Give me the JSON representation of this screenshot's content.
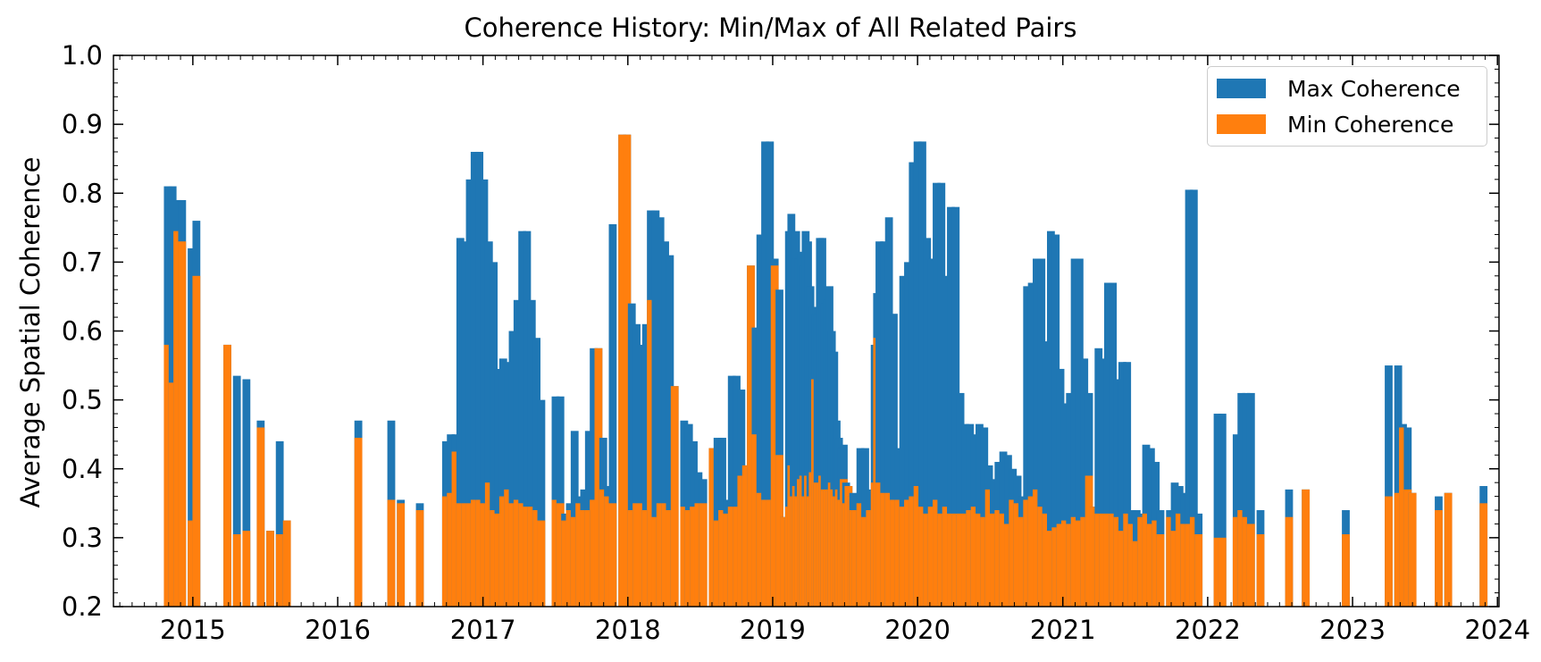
{
  "colors": {
    "max": "#1f77b4",
    "min": "#ff7f0e"
  },
  "chart_data": {
    "type": "bar",
    "title": "Coherence History: Min/Max of All Related Pairs",
    "xlabel": "",
    "ylabel": "Average Spatial Coherence",
    "xlim": [
      "2014-06-15",
      "2024-01-05"
    ],
    "ylim": [
      0.2,
      1.0
    ],
    "yticks": [
      "0.2",
      "0.3",
      "0.4",
      "0.5",
      "0.6",
      "0.7",
      "0.8",
      "0.9",
      "1.0"
    ],
    "xticks": [
      "2015",
      "2016",
      "2017",
      "2018",
      "2019",
      "2020",
      "2021",
      "2022",
      "2023",
      "2024"
    ],
    "grid": false,
    "legend_position": "top-right",
    "bar_layout": "overlaid",
    "series": [
      {
        "name": "Max Coherence",
        "color": "#1f77b4"
      },
      {
        "name": "Min Coherence",
        "color": "#ff7f0e"
      }
    ],
    "bars": [
      [
        "2014-10-30",
        0.81,
        0.58
      ],
      [
        "2014-11-11",
        0.81,
        0.525
      ],
      [
        "2014-11-23",
        0.79,
        0.745
      ],
      [
        "2014-12-05",
        0.79,
        0.73
      ],
      [
        "2014-12-29",
        0.72,
        0.325
      ],
      [
        "2015-01-10",
        0.76,
        0.68
      ],
      [
        "2015-03-29",
        0.58,
        0.58
      ],
      [
        "2015-04-22",
        0.535,
        0.305
      ],
      [
        "2015-05-16",
        0.53,
        0.31
      ],
      [
        "2015-06-21",
        0.47,
        0.46
      ],
      [
        "2015-07-15",
        0.31,
        0.31
      ],
      [
        "2015-08-08",
        0.44,
        0.305
      ],
      [
        "2015-08-26",
        0.325,
        0.325
      ],
      [
        "2016-02-22",
        0.47,
        0.445
      ],
      [
        "2016-05-15",
        0.47,
        0.355
      ],
      [
        "2016-06-08",
        0.355,
        0.35
      ],
      [
        "2016-07-26",
        0.35,
        0.34
      ],
      [
        "2016-09-30",
        0.44,
        0.36
      ],
      [
        "2016-10-12",
        0.45,
        0.365
      ],
      [
        "2016-10-24",
        0.45,
        0.425
      ],
      [
        "2016-11-05",
        0.735,
        0.35
      ],
      [
        "2016-11-17",
        0.73,
        0.35
      ],
      [
        "2016-11-29",
        0.82,
        0.35
      ],
      [
        "2016-12-11",
        0.86,
        0.355
      ],
      [
        "2016-12-23",
        0.86,
        0.355
      ],
      [
        "2017-01-04",
        0.82,
        0.35
      ],
      [
        "2017-01-16",
        0.73,
        0.38
      ],
      [
        "2017-01-28",
        0.7,
        0.34
      ],
      [
        "2017-02-09",
        0.545,
        0.335
      ],
      [
        "2017-02-21",
        0.56,
        0.36
      ],
      [
        "2017-03-05",
        0.555,
        0.37
      ],
      [
        "2017-03-17",
        0.6,
        0.35
      ],
      [
        "2017-03-29",
        0.645,
        0.355
      ],
      [
        "2017-04-10",
        0.745,
        0.35
      ],
      [
        "2017-04-22",
        0.745,
        0.345
      ],
      [
        "2017-05-04",
        0.645,
        0.345
      ],
      [
        "2017-05-16",
        0.59,
        0.34
      ],
      [
        "2017-05-28",
        0.5,
        0.325
      ],
      [
        "2017-07-03",
        0.505,
        0.355
      ],
      [
        "2017-07-15",
        0.505,
        0.35
      ],
      [
        "2017-07-27",
        0.335,
        0.325
      ],
      [
        "2017-08-08",
        0.35,
        0.34
      ],
      [
        "2017-08-20",
        0.455,
        0.33
      ],
      [
        "2017-09-01",
        0.36,
        0.35
      ],
      [
        "2017-09-13",
        0.37,
        0.34
      ],
      [
        "2017-09-25",
        0.455,
        0.34
      ],
      [
        "2017-10-07",
        0.575,
        0.355
      ],
      [
        "2017-10-19",
        0.575,
        0.575
      ],
      [
        "2017-10-31",
        0.445,
        0.37
      ],
      [
        "2017-11-12",
        0.375,
        0.36
      ],
      [
        "2017-11-24",
        0.755,
        0.35
      ],
      [
        "2017-12-18",
        0.885,
        0.885
      ],
      [
        "2017-12-30",
        0.885,
        0.885
      ],
      [
        "2018-01-11",
        0.64,
        0.34
      ],
      [
        "2018-01-23",
        0.61,
        0.35
      ],
      [
        "2018-02-04",
        0.58,
        0.35
      ],
      [
        "2018-02-16",
        0.61,
        0.34
      ],
      [
        "2018-02-28",
        0.775,
        0.645
      ],
      [
        "2018-03-12",
        0.775,
        0.33
      ],
      [
        "2018-03-24",
        0.765,
        0.35
      ],
      [
        "2018-04-05",
        0.73,
        0.35
      ],
      [
        "2018-04-17",
        0.71,
        0.34
      ],
      [
        "2018-04-29",
        0.52,
        0.52
      ],
      [
        "2018-05-23",
        0.47,
        0.345
      ],
      [
        "2018-06-04",
        0.465,
        0.34
      ],
      [
        "2018-06-16",
        0.44,
        0.345
      ],
      [
        "2018-06-28",
        0.395,
        0.35
      ],
      [
        "2018-07-10",
        0.385,
        0.35
      ],
      [
        "2018-08-03",
        0.43,
        0.43
      ],
      [
        "2018-08-15",
        0.445,
        0.325
      ],
      [
        "2018-08-27",
        0.445,
        0.34
      ],
      [
        "2018-09-08",
        0.355,
        0.335
      ],
      [
        "2018-09-20",
        0.535,
        0.345
      ],
      [
        "2018-10-02",
        0.535,
        0.345
      ],
      [
        "2018-10-14",
        0.515,
        0.39
      ],
      [
        "2018-10-26",
        0.405,
        0.405
      ],
      [
        "2018-11-07",
        0.695,
        0.695
      ],
      [
        "2018-11-19",
        0.605,
        0.45
      ],
      [
        "2018-12-01",
        0.74,
        0.365
      ],
      [
        "2018-12-13",
        0.875,
        0.355
      ],
      [
        "2018-12-25",
        0.875,
        0.355
      ],
      [
        "2019-01-06",
        0.705,
        0.695
      ],
      [
        "2019-01-18",
        0.66,
        0.42
      ],
      [
        "2019-01-30",
        0.33,
        0.33
      ],
      [
        "2019-02-11",
        0.745,
        0.345
      ],
      [
        "2019-02-17",
        0.77,
        0.405
      ],
      [
        "2019-02-23",
        0.735,
        0.36
      ],
      [
        "2019-03-01",
        0.745,
        0.375
      ],
      [
        "2019-03-07",
        0.705,
        0.36
      ],
      [
        "2019-03-13",
        0.715,
        0.385
      ],
      [
        "2019-03-19",
        0.695,
        0.39
      ],
      [
        "2019-03-25",
        0.745,
        0.36
      ],
      [
        "2019-03-31",
        0.73,
        0.39
      ],
      [
        "2019-04-06",
        0.665,
        0.36
      ],
      [
        "2019-04-12",
        0.635,
        0.395
      ],
      [
        "2019-04-18",
        0.625,
        0.53
      ],
      [
        "2019-04-24",
        0.625,
        0.38
      ],
      [
        "2019-04-30",
        0.735,
        0.38
      ],
      [
        "2019-05-06",
        0.735,
        0.39
      ],
      [
        "2019-05-12",
        0.64,
        0.37
      ],
      [
        "2019-05-18",
        0.645,
        0.37
      ],
      [
        "2019-05-24",
        0.665,
        0.37
      ],
      [
        "2019-05-30",
        0.6,
        0.38
      ],
      [
        "2019-06-05",
        0.57,
        0.37
      ],
      [
        "2019-06-11",
        0.47,
        0.36
      ],
      [
        "2019-06-17",
        0.445,
        0.37
      ],
      [
        "2019-06-23",
        0.43,
        0.355
      ],
      [
        "2019-06-29",
        0.435,
        0.385
      ],
      [
        "2019-07-05",
        0.38,
        0.35
      ],
      [
        "2019-07-11",
        0.375,
        0.375
      ],
      [
        "2019-07-17",
        0.36,
        0.36
      ],
      [
        "2019-07-23",
        0.365,
        0.34
      ],
      [
        "2019-07-29",
        0.36,
        0.34
      ],
      [
        "2019-08-10",
        0.43,
        0.35
      ],
      [
        "2019-08-22",
        0.43,
        0.33
      ],
      [
        "2019-09-03",
        0.37,
        0.34
      ],
      [
        "2019-09-15",
        0.58,
        0.38
      ],
      [
        "2019-09-21",
        0.655,
        0.59
      ],
      [
        "2019-09-27",
        0.73,
        0.38
      ],
      [
        "2019-10-09",
        0.73,
        0.365
      ],
      [
        "2019-10-21",
        0.765,
        0.365
      ],
      [
        "2019-11-02",
        0.625,
        0.355
      ],
      [
        "2019-11-14",
        0.43,
        0.355
      ],
      [
        "2019-11-26",
        0.68,
        0.345
      ],
      [
        "2019-12-08",
        0.7,
        0.355
      ],
      [
        "2019-12-20",
        0.845,
        0.36
      ],
      [
        "2020-01-01",
        0.875,
        0.375
      ],
      [
        "2020-01-13",
        0.875,
        0.345
      ],
      [
        "2020-01-25",
        0.735,
        0.335
      ],
      [
        "2020-02-06",
        0.705,
        0.345
      ],
      [
        "2020-02-18",
        0.815,
        0.355
      ],
      [
        "2020-03-01",
        0.815,
        0.335
      ],
      [
        "2020-03-13",
        0.68,
        0.345
      ],
      [
        "2020-03-25",
        0.78,
        0.335
      ],
      [
        "2020-04-06",
        0.78,
        0.335
      ],
      [
        "2020-04-18",
        0.51,
        0.335
      ],
      [
        "2020-04-30",
        0.465,
        0.335
      ],
      [
        "2020-05-12",
        0.465,
        0.34
      ],
      [
        "2020-05-24",
        0.45,
        0.345
      ],
      [
        "2020-06-05",
        0.465,
        0.335
      ],
      [
        "2020-06-17",
        0.46,
        0.33
      ],
      [
        "2020-06-29",
        0.405,
        0.37
      ],
      [
        "2020-07-11",
        0.385,
        0.335
      ],
      [
        "2020-07-23",
        0.41,
        0.34
      ],
      [
        "2020-08-04",
        0.425,
        0.335
      ],
      [
        "2020-08-16",
        0.42,
        0.32
      ],
      [
        "2020-08-28",
        0.4,
        0.355
      ],
      [
        "2020-09-09",
        0.39,
        0.35
      ],
      [
        "2020-09-21",
        0.36,
        0.33
      ],
      [
        "2020-10-03",
        0.665,
        0.355
      ],
      [
        "2020-10-15",
        0.67,
        0.36
      ],
      [
        "2020-10-27",
        0.705,
        0.37
      ],
      [
        "2020-11-08",
        0.705,
        0.345
      ],
      [
        "2020-11-20",
        0.585,
        0.335
      ],
      [
        "2020-12-02",
        0.745,
        0.31
      ],
      [
        "2020-12-14",
        0.74,
        0.315
      ],
      [
        "2020-12-26",
        0.545,
        0.32
      ],
      [
        "2021-01-07",
        0.495,
        0.325
      ],
      [
        "2021-01-19",
        0.51,
        0.32
      ],
      [
        "2021-01-31",
        0.705,
        0.33
      ],
      [
        "2021-02-12",
        0.705,
        0.325
      ],
      [
        "2021-02-24",
        0.56,
        0.33
      ],
      [
        "2021-03-08",
        0.51,
        0.39
      ],
      [
        "2021-03-20",
        0.345,
        0.345
      ],
      [
        "2021-04-01",
        0.575,
        0.335
      ],
      [
        "2021-04-13",
        0.56,
        0.335
      ],
      [
        "2021-04-25",
        0.67,
        0.335
      ],
      [
        "2021-05-07",
        0.67,
        0.335
      ],
      [
        "2021-05-19",
        0.53,
        0.33
      ],
      [
        "2021-05-31",
        0.555,
        0.31
      ],
      [
        "2021-06-12",
        0.555,
        0.335
      ],
      [
        "2021-06-24",
        0.34,
        0.32
      ],
      [
        "2021-07-06",
        0.34,
        0.295
      ],
      [
        "2021-07-18",
        0.335,
        0.33
      ],
      [
        "2021-07-30",
        0.435,
        0.335
      ],
      [
        "2021-08-11",
        0.43,
        0.32
      ],
      [
        "2021-08-23",
        0.41,
        0.325
      ],
      [
        "2021-09-04",
        0.34,
        0.305
      ],
      [
        "2021-09-28",
        0.34,
        0.33
      ],
      [
        "2021-10-10",
        0.38,
        0.31
      ],
      [
        "2021-10-22",
        0.375,
        0.335
      ],
      [
        "2021-11-03",
        0.365,
        0.32
      ],
      [
        "2021-11-15",
        0.805,
        0.32
      ],
      [
        "2021-11-27",
        0.805,
        0.33
      ],
      [
        "2021-12-09",
        0.335,
        0.305
      ],
      [
        "2022-01-26",
        0.48,
        0.3
      ],
      [
        "2022-02-07",
        0.48,
        0.3
      ],
      [
        "2022-03-15",
        0.45,
        0.33
      ],
      [
        "2022-03-27",
        0.51,
        0.34
      ],
      [
        "2022-04-08",
        0.51,
        0.33
      ],
      [
        "2022-04-20",
        0.51,
        0.32
      ],
      [
        "2022-05-14",
        0.34,
        0.305
      ],
      [
        "2022-07-25",
        0.37,
        0.33
      ],
      [
        "2022-09-05",
        0.37,
        0.37
      ],
      [
        "2022-12-15",
        0.34,
        0.305
      ],
      [
        "2023-04-02",
        0.55,
        0.36
      ],
      [
        "2023-04-26",
        0.55,
        0.365
      ],
      [
        "2023-05-08",
        0.465,
        0.46
      ],
      [
        "2023-05-20",
        0.46,
        0.37
      ],
      [
        "2023-06-01",
        0.365,
        0.365
      ],
      [
        "2023-08-06",
        0.36,
        0.34
      ],
      [
        "2023-08-30",
        0.365,
        0.365
      ],
      [
        "2023-11-27",
        0.375,
        0.35
      ]
    ]
  }
}
